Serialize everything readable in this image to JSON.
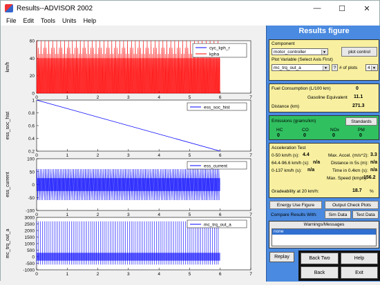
{
  "window": {
    "title": "Results--ADVISOR 2002",
    "controls": [
      "—",
      "☐",
      "✕"
    ]
  },
  "menu": [
    "File",
    "Edit",
    "Tools",
    "Units",
    "Help"
  ],
  "colors": {
    "panel": "#4a8ae0",
    "fuel": "#f8f0a0",
    "emissions": "#30c060",
    "accel": "#f8f0a0",
    "red_series": "#ff0000",
    "blue_series": "#0000ff"
  },
  "plots": [
    {
      "ylabel": "km/h",
      "yticks": [
        "60",
        "40",
        "20",
        "0"
      ],
      "ylim": [
        0,
        60
      ],
      "legend": [
        "cyc_kph_r",
        "kpha"
      ],
      "type": "pulses"
    },
    {
      "ylabel": "ess_soc_hist",
      "yticks": [
        "1",
        "0.8",
        "0.6",
        "0.4",
        "0.2"
      ],
      "ylim": [
        0.2,
        1
      ],
      "legend": [
        "ess_soc_hist"
      ],
      "type": "decline",
      "x": [
        0,
        6
      ],
      "y": [
        1,
        0.2
      ]
    },
    {
      "ylabel": "ess_current",
      "yticks": [
        "100",
        "50",
        "0",
        "-50",
        "-100"
      ],
      "ylim": [
        -100,
        100
      ],
      "legend": [
        "ess_current"
      ],
      "type": "oscillation"
    },
    {
      "ylabel": "mc_trq_out_a",
      "yticks": [
        "3000",
        "2500",
        "2000",
        "1500",
        "1000",
        "500",
        "0",
        "-500",
        "-1000"
      ],
      "ylim": [
        -1000,
        3000
      ],
      "legend": [
        "mc_trq_out_a"
      ],
      "type": "spikes"
    }
  ],
  "xticks": [
    "0",
    "1",
    "2",
    "3",
    "4",
    "5",
    "6",
    "7"
  ],
  "xlim": [
    0,
    7
  ],
  "panel": {
    "title": "Results figure",
    "component_label": "Component",
    "component_value": "motor_controller",
    "plot_control": "plot control",
    "plot_variable_label": "Plot Variable (Select Axis First)",
    "plot_variable_value": "mc_trq_out_a",
    "help_q": "?",
    "num_plots_label": "# of plots",
    "num_plots_value": "4",
    "fuel_label": "Fuel Consumption (L/100 km)",
    "fuel_value": "0",
    "gas_equiv_label": "Gasoline Equivalent",
    "gas_equiv_value": "11.1",
    "distance_label": "Distance (km)",
    "distance_value": "271.3",
    "emissions_label": "Emissions (grams/km)",
    "standards": "Standards",
    "emis_headers": [
      "HC",
      "CO",
      "NOx",
      "PM"
    ],
    "emis_values": [
      "0",
      "0",
      "0",
      "0"
    ],
    "accel_title": "Acceleration Test",
    "acc_0_50_label": "0-50 km/h (s):",
    "acc_0_50_value": "4.4",
    "acc_64_96_label": "64.4-96.6 km/h (s):",
    "acc_64_96_value": "n/a",
    "acc_0_137_label": "0-137 km/h (s):",
    "acc_0_137_value": "n/a",
    "max_accel_label": "Max. Accel. (m/s^2):",
    "max_accel_value": "3.3",
    "dist_5s_label": "Distance in 5s (m):",
    "dist_5s_value": "n/a",
    "time_04_label": "Time in 0.4km (s):",
    "time_04_value": "n/a",
    "max_speed_label": "Max. Speed (kmph):",
    "max_speed_value": "156.2",
    "grade_label": "Gradeability at 20 km/h:",
    "grade_value": "18.7",
    "grade_unit": "%",
    "energy_use": "Energy Use Figure",
    "output_check": "Output Check Plots",
    "compare_label": "Compare Results With:",
    "sim_data": "Sim Data",
    "test_data": "Test Data",
    "warnings_label": "Warnings/Messages",
    "warnings_value": "none",
    "replay": "Replay",
    "back_two": "Back Two",
    "help": "Help",
    "back": "Back",
    "exit": "Exit"
  }
}
